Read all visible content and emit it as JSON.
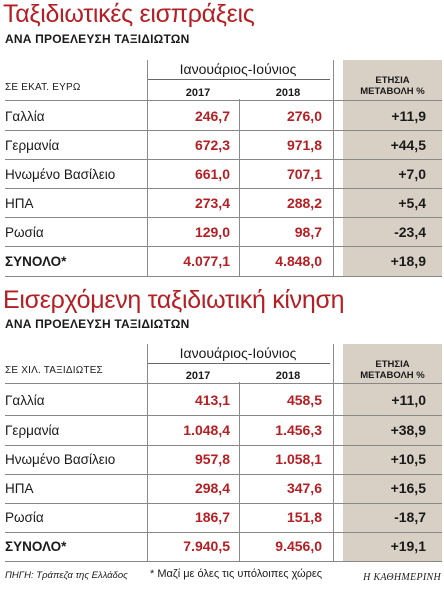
{
  "sections": [
    {
      "title": "Ταξιδιωτικές εισπράξεις",
      "subtitle": "ΑΝΑ ΠΡΟΕΛΕΥΣΗ ΤΑΞΙΔΙΩΤΩΝ",
      "period": "Ιανουάριος-Ιούνιος",
      "unit_label": "ΣΕ ΕΚΑΤ. ΕΥΡΩ",
      "year1": "2017",
      "year2": "2018",
      "change_header_line1": "ΕΤΗΣΙΑ",
      "change_header_line2": "ΜΕΤΑΒΟΛΗ %",
      "rows": [
        {
          "country": "Γαλλία",
          "v2017": "246,7",
          "v2018": "276,0",
          "change": "+11,9"
        },
        {
          "country": "Γερμανία",
          "v2017": "672,3",
          "v2018": "971,8",
          "change": "+44,5"
        },
        {
          "country": "Ηνωμένο Βασίλειο",
          "v2017": "661,0",
          "v2018": "707,1",
          "change": "+7,0"
        },
        {
          "country": "ΗΠΑ",
          "v2017": "273,4",
          "v2018": "288,2",
          "change": "+5,4"
        },
        {
          "country": "Ρωσία",
          "v2017": "129,0",
          "v2018": "98,7",
          "change": "-23,4"
        },
        {
          "country": "ΣΥΝΟΛΟ*",
          "v2017": "4.077,1",
          "v2018": "4.848,0",
          "change": "+18,9"
        }
      ]
    },
    {
      "title": "Εισερχόμενη ταξιδιωτική κίνηση",
      "subtitle": "ΑΝΑ ΠΡΟΕΛΕΥΣΗ ΤΑΞΙΔΙΩΤΩΝ",
      "period": "Ιανουάριος-Ιούνιος",
      "unit_label": "ΣΕ ΧΙΛ. ΤΑΞΙΔΙΩΤΕΣ",
      "year1": "2017",
      "year2": "2018",
      "change_header_line1": "ΕΤΗΣΙΑ",
      "change_header_line2": "ΜΕΤΑΒΟΛΗ %",
      "rows": [
        {
          "country": "Γαλλία",
          "v2017": "413,1",
          "v2018": "458,5",
          "change": "+11,0"
        },
        {
          "country": "Γερμανία",
          "v2017": "1.048,4",
          "v2018": "1.456,3",
          "change": "+38,9"
        },
        {
          "country": "Ηνωμένο Βασίλειο",
          "v2017": "957,8",
          "v2018": "1.058,1",
          "change": "+10,5"
        },
        {
          "country": "ΗΠΑ",
          "v2017": "298,4",
          "v2018": "347,6",
          "change": "+16,5"
        },
        {
          "country": "Ρωσία",
          "v2017": "186,7",
          "v2018": "151,8",
          "change": "-18,7"
        },
        {
          "country": "ΣΥΝΟΛΟ*",
          "v2017": "7.940,5",
          "v2018": "9.456,0",
          "change": "+19,1"
        }
      ]
    }
  ],
  "source": "ΠΗΓΗ: Τράπεζα της Ελλάδος",
  "footnote": "* Μαζί με όλες τις υπόλοιπες χώρες",
  "brand": "Η ΚΑΘΗΜΕΡΙΝΗ",
  "colors": {
    "title": "#b51f24",
    "values": "#b51f24",
    "change_column": "#d8d0c5"
  }
}
